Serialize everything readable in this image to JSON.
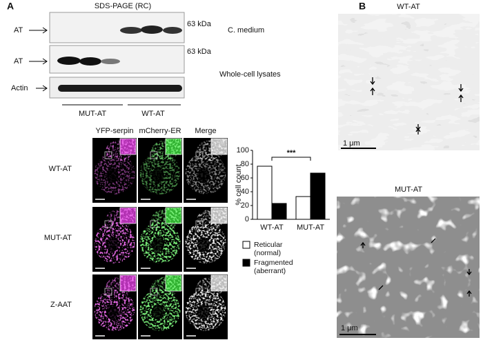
{
  "panel_a": {
    "label": "A",
    "blot_title": "SDS-PAGE (RC)",
    "rows": [
      {
        "label": "AT",
        "marker": "63 kDa",
        "sample": "C. medium"
      },
      {
        "label": "AT",
        "marker": "63 kDa",
        "sample": "Whole-cell lysates"
      },
      {
        "label": "Actin"
      }
    ],
    "groups": [
      "MUT-AT",
      "WT-AT"
    ],
    "columns": [
      "YFP-serpin",
      "mCherry-ER",
      "Merge"
    ],
    "image_rows": [
      "WT-AT",
      "MUT-AT",
      "Z-AAT"
    ]
  },
  "chart_data": {
    "type": "bar",
    "categories": [
      "WT-AT",
      "MUT-AT"
    ],
    "series": [
      {
        "name": "Reticular (normal)",
        "color": "#ffffff",
        "values": [
          77,
          33
        ]
      },
      {
        "name": "Fragmented (aberrant)",
        "color": "#000000",
        "values": [
          23,
          67
        ]
      }
    ],
    "y_label": "% cell count",
    "annotation": "***",
    "ylim": [
      0,
      100
    ],
    "yticks": [
      0,
      20,
      40,
      60,
      80,
      100
    ],
    "legend": "bottom"
  },
  "panel_b": {
    "label": "B",
    "images": [
      {
        "title": "WT-AT",
        "scale": "1 μm"
      },
      {
        "title": "MUT-AT",
        "scale": "1 μm"
      }
    ]
  }
}
